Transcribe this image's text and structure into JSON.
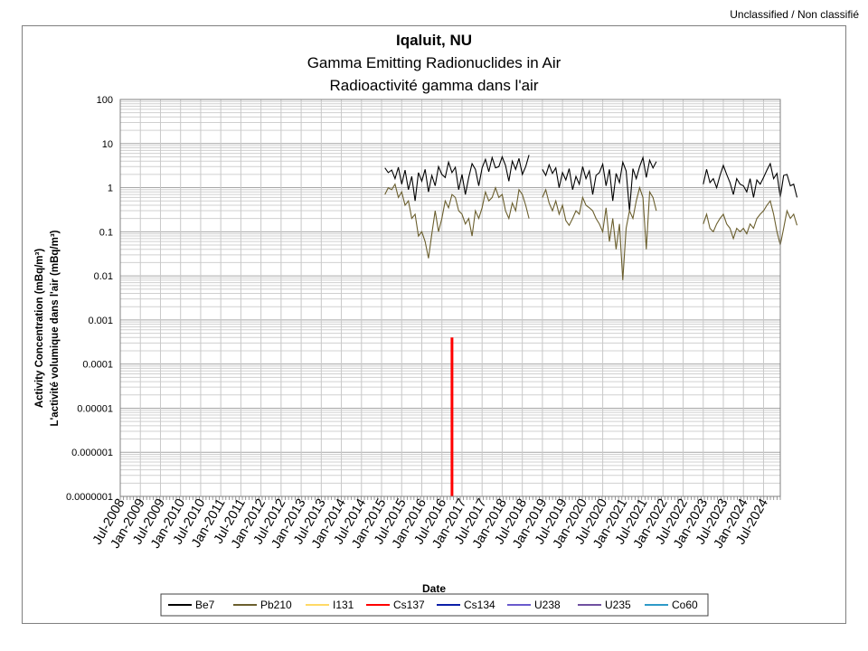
{
  "classification": "Unclassified / Non classifié",
  "chart_data": {
    "type": "line",
    "title": "Iqaluit, NU",
    "subtitle_en": "Gamma Emitting Radionuclides in Air",
    "subtitle_fr": "Radioactivité gamma dans l'air",
    "xlabel": "Date",
    "ylabel_en": "Activity Concentration  (mBq/m³)",
    "ylabel_fr": "L'activité volumique dans l'air (mBq/m³)",
    "y_scale": "log",
    "ylim": [
      1e-07,
      100
    ],
    "xlim": [
      "2008-07",
      "2024-12"
    ],
    "grid": true,
    "legend_position": "bottom",
    "y_ticks": [
      "100",
      "10",
      "1",
      "0.1",
      "0.01",
      "0.001",
      "0.0001",
      "0.00001",
      "0.000001",
      "0.0000001"
    ],
    "x_ticks": [
      "Jul-2008",
      "Jan-2009",
      "Jul-2009",
      "Jan-2010",
      "Jul-2010",
      "Jan-2011",
      "Jul-2011",
      "Jan-2012",
      "Jul-2012",
      "Jan-2013",
      "Jul-2013",
      "Jan-2014",
      "Jul-2014",
      "Jan-2015",
      "Jul-2015",
      "Jan-2016",
      "Jul-2016",
      "Jan-2017",
      "Jul-2017",
      "Jan-2018",
      "Jul-2018",
      "Jan-2019",
      "Jul-2019",
      "Jan-2020",
      "Jul-2020",
      "Jan-2021",
      "Jul-2021",
      "Jan-2022",
      "Jul-2022",
      "Jan-2023",
      "Jul-2023",
      "Jan-2024",
      "Jul-2024"
    ],
    "series": [
      {
        "name": "Be7",
        "color": "#000000",
        "points": [
          [
            "2015-02",
            2.8
          ],
          [
            "2015-03",
            2.2
          ],
          [
            "2015-04",
            2.5
          ],
          [
            "2015-05",
            1.6
          ],
          [
            "2015-06",
            2.9
          ],
          [
            "2015-07",
            1.2
          ],
          [
            "2015-08",
            2.5
          ],
          [
            "2015-09",
            0.9
          ],
          [
            "2015-10",
            1.8
          ],
          [
            "2015-11",
            0.5
          ],
          [
            "2015-12",
            2.2
          ],
          [
            "2016-01",
            1.4
          ],
          [
            "2016-02",
            2.6
          ],
          [
            "2016-03",
            0.8
          ],
          [
            "2016-04",
            1.9
          ],
          [
            "2016-05",
            1.1
          ],
          [
            "2016-06",
            3.0
          ],
          [
            "2016-07",
            2.0
          ],
          [
            "2016-08",
            1.7
          ],
          [
            "2016-09",
            3.8
          ],
          [
            "2016-10",
            2.2
          ],
          [
            "2016-11",
            2.9
          ],
          [
            "2016-12",
            0.9
          ],
          [
            "2017-01",
            2.0
          ],
          [
            "2017-02",
            0.7
          ],
          [
            "2017-03",
            1.7
          ],
          [
            "2017-04",
            3.5
          ],
          [
            "2017-05",
            2.6
          ],
          [
            "2017-06",
            1.1
          ],
          [
            "2017-07",
            2.8
          ],
          [
            "2017-08",
            4.4
          ],
          [
            "2017-09",
            2.3
          ],
          [
            "2017-10",
            4.8
          ],
          [
            "2017-11",
            2.8
          ],
          [
            "2017-12",
            3.0
          ],
          [
            "2018-01",
            5.0
          ],
          [
            "2018-02",
            3.2
          ],
          [
            "2018-03",
            1.4
          ],
          [
            "2018-04",
            4.0
          ],
          [
            "2018-05",
            2.6
          ],
          [
            "2018-06",
            4.6
          ],
          [
            "2018-07",
            2.0
          ],
          [
            "2018-08",
            3.0
          ],
          [
            "2018-09",
            5.5
          ]
        ]
      },
      {
        "name": "Be7",
        "color": "#000000",
        "points": [
          [
            "2019-01",
            2.6
          ],
          [
            "2019-02",
            1.9
          ],
          [
            "2019-03",
            3.3
          ],
          [
            "2019-04",
            2.1
          ],
          [
            "2019-05",
            2.8
          ],
          [
            "2019-06",
            1.0
          ],
          [
            "2019-07",
            2.2
          ],
          [
            "2019-08",
            1.5
          ],
          [
            "2019-09",
            2.7
          ],
          [
            "2019-10",
            0.9
          ],
          [
            "2019-11",
            1.8
          ],
          [
            "2019-12",
            1.2
          ],
          [
            "2020-01",
            3.0
          ],
          [
            "2020-02",
            1.6
          ],
          [
            "2020-03",
            2.4
          ],
          [
            "2020-04",
            0.7
          ],
          [
            "2020-05",
            1.9
          ],
          [
            "2020-06",
            2.2
          ],
          [
            "2020-07",
            3.4
          ],
          [
            "2020-08",
            1.1
          ],
          [
            "2020-09",
            2.6
          ],
          [
            "2020-10",
            0.5
          ],
          [
            "2020-11",
            2.1
          ],
          [
            "2020-12",
            1.3
          ],
          [
            "2021-01",
            3.8
          ],
          [
            "2021-02",
            2.4
          ],
          [
            "2021-03",
            0.3
          ],
          [
            "2021-04",
            2.7
          ],
          [
            "2021-05",
            1.6
          ],
          [
            "2021-06",
            3.0
          ],
          [
            "2021-07",
            4.8
          ],
          [
            "2021-08",
            1.7
          ],
          [
            "2021-09",
            4.2
          ],
          [
            "2021-10",
            2.8
          ],
          [
            "2021-11",
            3.9
          ]
        ]
      },
      {
        "name": "Be7",
        "color": "#000000",
        "points": [
          [
            "2023-01",
            1.2
          ],
          [
            "2023-02",
            2.6
          ],
          [
            "2023-03",
            1.3
          ],
          [
            "2023-04",
            1.6
          ],
          [
            "2023-05",
            1.0
          ],
          [
            "2023-06",
            1.9
          ],
          [
            "2023-07",
            3.2
          ],
          [
            "2023-08",
            2.0
          ],
          [
            "2023-09",
            1.3
          ],
          [
            "2023-10",
            0.7
          ],
          [
            "2023-11",
            1.6
          ],
          [
            "2023-12",
            1.2
          ],
          [
            "2024-01",
            1.1
          ],
          [
            "2024-02",
            0.8
          ],
          [
            "2024-03",
            1.6
          ],
          [
            "2024-04",
            0.6
          ],
          [
            "2024-05",
            1.5
          ],
          [
            "2024-06",
            1.2
          ],
          [
            "2024-07",
            1.7
          ],
          [
            "2024-08",
            2.5
          ],
          [
            "2024-09",
            3.5
          ],
          [
            "2024-10",
            1.6
          ],
          [
            "2024-11",
            2.1
          ],
          [
            "2024-12",
            0.6
          ],
          [
            "2025-01",
            1.9
          ],
          [
            "2025-02",
            2.0
          ],
          [
            "2025-03",
            1.1
          ],
          [
            "2025-04",
            1.2
          ],
          [
            "2025-05",
            0.6
          ]
        ]
      },
      {
        "name": "Pb210",
        "color": "#6b5f2e",
        "points": [
          [
            "2015-02",
            0.7
          ],
          [
            "2015-03",
            1.0
          ],
          [
            "2015-04",
            0.9
          ],
          [
            "2015-05",
            1.2
          ],
          [
            "2015-06",
            0.6
          ],
          [
            "2015-07",
            0.8
          ],
          [
            "2015-08",
            0.4
          ],
          [
            "2015-09",
            0.5
          ],
          [
            "2015-10",
            0.2
          ],
          [
            "2015-11",
            0.25
          ],
          [
            "2015-12",
            0.08
          ],
          [
            "2016-01",
            0.1
          ],
          [
            "2016-02",
            0.06
          ],
          [
            "2016-03",
            0.025
          ],
          [
            "2016-04",
            0.09
          ],
          [
            "2016-05",
            0.3
          ],
          [
            "2016-06",
            0.1
          ],
          [
            "2016-07",
            0.2
          ],
          [
            "2016-08",
            0.5
          ],
          [
            "2016-09",
            0.35
          ],
          [
            "2016-10",
            0.7
          ],
          [
            "2016-11",
            0.6
          ],
          [
            "2016-12",
            0.3
          ],
          [
            "2017-01",
            0.25
          ],
          [
            "2017-02",
            0.15
          ],
          [
            "2017-03",
            0.2
          ],
          [
            "2017-04",
            0.08
          ],
          [
            "2017-05",
            0.3
          ],
          [
            "2017-06",
            0.2
          ],
          [
            "2017-07",
            0.35
          ],
          [
            "2017-08",
            0.8
          ],
          [
            "2017-09",
            0.5
          ],
          [
            "2017-10",
            0.6
          ],
          [
            "2017-11",
            1.0
          ],
          [
            "2017-12",
            0.6
          ],
          [
            "2018-01",
            0.7
          ],
          [
            "2018-02",
            0.3
          ],
          [
            "2018-03",
            0.2
          ],
          [
            "2018-04",
            0.45
          ],
          [
            "2018-05",
            0.3
          ],
          [
            "2018-06",
            0.9
          ],
          [
            "2018-07",
            0.7
          ],
          [
            "2018-08",
            0.4
          ],
          [
            "2018-09",
            0.2
          ]
        ]
      },
      {
        "name": "Pb210",
        "color": "#6b5f2e",
        "points": [
          [
            "2019-01",
            0.6
          ],
          [
            "2019-02",
            0.9
          ],
          [
            "2019-03",
            0.45
          ],
          [
            "2019-04",
            0.3
          ],
          [
            "2019-05",
            0.5
          ],
          [
            "2019-06",
            0.25
          ],
          [
            "2019-07",
            0.4
          ],
          [
            "2019-08",
            0.18
          ],
          [
            "2019-09",
            0.14
          ],
          [
            "2019-10",
            0.2
          ],
          [
            "2019-11",
            0.3
          ],
          [
            "2019-12",
            0.25
          ],
          [
            "2020-01",
            0.6
          ],
          [
            "2020-02",
            0.4
          ],
          [
            "2020-03",
            0.35
          ],
          [
            "2020-04",
            0.3
          ],
          [
            "2020-05",
            0.2
          ],
          [
            "2020-06",
            0.15
          ],
          [
            "2020-07",
            0.1
          ],
          [
            "2020-08",
            0.35
          ],
          [
            "2020-09",
            0.06
          ],
          [
            "2020-10",
            0.2
          ],
          [
            "2020-11",
            0.04
          ],
          [
            "2020-12",
            0.15
          ],
          [
            "2021-01",
            0.008
          ],
          [
            "2021-02",
            0.12
          ],
          [
            "2021-03",
            0.3
          ],
          [
            "2021-04",
            0.2
          ],
          [
            "2021-05",
            0.5
          ],
          [
            "2021-06",
            1.0
          ],
          [
            "2021-07",
            0.6
          ],
          [
            "2021-08",
            0.04
          ],
          [
            "2021-09",
            0.8
          ],
          [
            "2021-10",
            0.6
          ],
          [
            "2021-11",
            0.3
          ]
        ]
      },
      {
        "name": "Pb210",
        "color": "#6b5f2e",
        "points": [
          [
            "2023-01",
            0.15
          ],
          [
            "2023-02",
            0.25
          ],
          [
            "2023-03",
            0.12
          ],
          [
            "2023-04",
            0.1
          ],
          [
            "2023-05",
            0.15
          ],
          [
            "2023-06",
            0.2
          ],
          [
            "2023-07",
            0.25
          ],
          [
            "2023-08",
            0.15
          ],
          [
            "2023-09",
            0.12
          ],
          [
            "2023-10",
            0.07
          ],
          [
            "2023-11",
            0.12
          ],
          [
            "2023-12",
            0.1
          ],
          [
            "2024-01",
            0.12
          ],
          [
            "2024-02",
            0.09
          ],
          [
            "2024-03",
            0.15
          ],
          [
            "2024-04",
            0.12
          ],
          [
            "2024-05",
            0.2
          ],
          [
            "2024-06",
            0.25
          ],
          [
            "2024-07",
            0.3
          ],
          [
            "2024-08",
            0.4
          ],
          [
            "2024-09",
            0.5
          ],
          [
            "2024-10",
            0.25
          ],
          [
            "2024-11",
            0.1
          ],
          [
            "2024-12",
            0.05
          ],
          [
            "2025-01",
            0.12
          ],
          [
            "2025-02",
            0.3
          ],
          [
            "2025-03",
            0.2
          ],
          [
            "2025-04",
            0.25
          ],
          [
            "2025-05",
            0.14
          ]
        ]
      },
      {
        "name": "Cs137",
        "color": "#ff0000",
        "points": [
          [
            "2016-10",
            1e-07
          ],
          [
            "2016-10",
            0.0004
          ]
        ]
      }
    ],
    "legend": [
      {
        "name": "Be7",
        "color": "#000000"
      },
      {
        "name": "Pb210",
        "color": "#6b5f2e"
      },
      {
        "name": "I131",
        "color": "#ffd966"
      },
      {
        "name": "Cs137",
        "color": "#ff0000"
      },
      {
        "name": "Cs134",
        "color": "#0b1fa8"
      },
      {
        "name": "U238",
        "color": "#6a5acd"
      },
      {
        "name": "U235",
        "color": "#7050a0"
      },
      {
        "name": "Co60",
        "color": "#2e9ac8"
      }
    ]
  }
}
